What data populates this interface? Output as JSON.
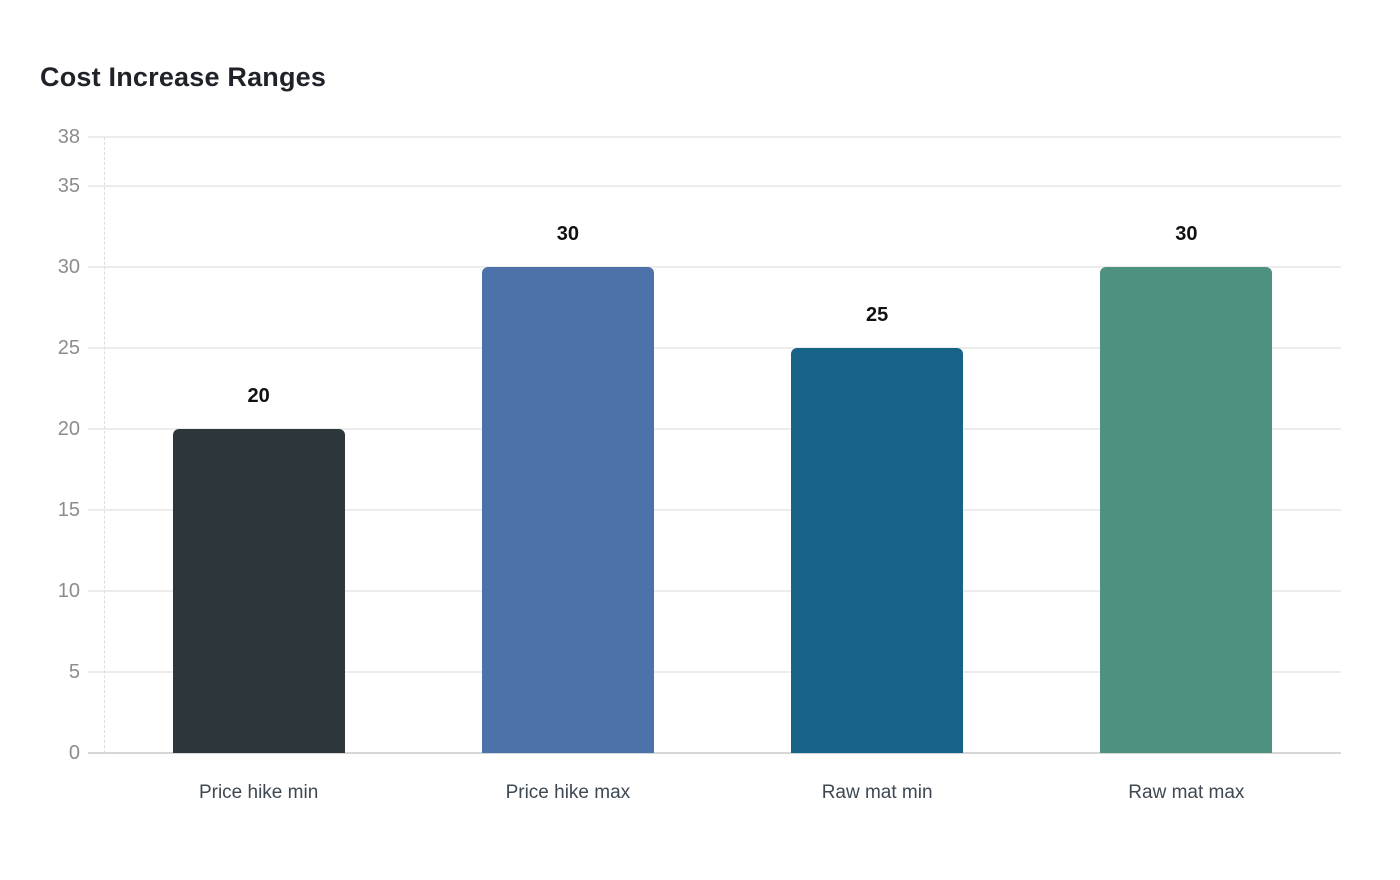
{
  "chart": {
    "title": "Cost Increase Ranges"
  },
  "chart_data": {
    "type": "bar",
    "title": "Cost Increase Ranges",
    "categories": [
      "Price hike min",
      "Price hike max",
      "Raw mat min",
      "Raw mat max"
    ],
    "values": [
      20,
      30,
      25,
      30
    ],
    "value_labels": [
      "20",
      "30",
      "25",
      "30"
    ],
    "bar_colors": [
      "#2d363a",
      "#4d72a9",
      "#176388",
      "#4f9180"
    ],
    "xlabel": "",
    "ylabel": "",
    "ylim": [
      0,
      38
    ],
    "yticks": [
      0,
      5,
      10,
      15,
      20,
      25,
      30,
      35,
      38
    ],
    "grid": true,
    "legend_position": "none"
  },
  "colors": {
    "background": "#ffffff",
    "title_text": "#1f2329",
    "ytick_text": "#8c8c8c",
    "xtick_text": "#3d4852",
    "value_label_text": "#111111",
    "gridline": "#ececec",
    "axis_line": "#d6d6d6",
    "dashed_axis": "#dddddd"
  }
}
